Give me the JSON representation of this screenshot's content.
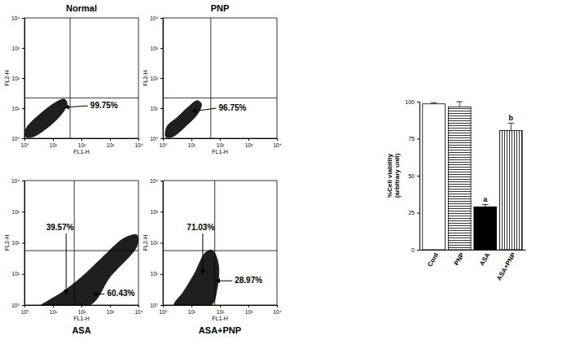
{
  "chart_data": [
    {
      "type": "density",
      "title": "Normal",
      "x_label": "FL1-H",
      "y_label": "FL2-H",
      "log": true,
      "xlim": [
        1,
        10000
      ],
      "ylim": [
        1,
        10000
      ],
      "xticks": [
        {
          "value": 1,
          "label": "10⁰"
        },
        {
          "value": 10,
          "label": "10¹"
        },
        {
          "value": 100,
          "label": "10²"
        },
        {
          "value": 1000,
          "label": "10³"
        },
        {
          "value": 10000,
          "label": "10⁴"
        }
      ],
      "yticks": [
        {
          "value": 1,
          "label": "10⁰"
        },
        {
          "value": 10,
          "label": "10¹"
        },
        {
          "value": 100,
          "label": "10²"
        },
        {
          "value": 1000,
          "label": "10³"
        },
        {
          "value": 10000,
          "label": "10⁴"
        }
      ],
      "gate_x": 40,
      "gate_y": 22,
      "color": "#000000",
      "x": [
        1.12,
        2.0,
        6.3,
        20,
        31.6,
        25,
        12.6,
        4.0,
        1.6,
        1.12
      ],
      "values": [
        1.12,
        1.12,
        2.2,
        6.3,
        14,
        20,
        15.8,
        7.1,
        3.2,
        2.0
      ],
      "annotations": [
        {
          "text": "99.75%",
          "x": 204,
          "y": 12,
          "arrow_x": 25.7,
          "arrow_y": 10.7
        }
      ]
    },
    {
      "type": "density",
      "title": "PNP",
      "x_label": "FL1-H",
      "y_label": "FL2-H",
      "log": true,
      "xlim": [
        1,
        10000
      ],
      "ylim": [
        1,
        10000
      ],
      "xticks": [
        {
          "value": 1,
          "label": "10⁰"
        },
        {
          "value": 10,
          "label": "10¹"
        },
        {
          "value": 100,
          "label": "10²"
        },
        {
          "value": 1000,
          "label": "10³"
        },
        {
          "value": 10000,
          "label": "10⁴"
        }
      ],
      "yticks": [
        {
          "value": 1,
          "label": "10⁰"
        },
        {
          "value": 10,
          "label": "10¹"
        },
        {
          "value": 100,
          "label": "10²"
        },
        {
          "value": 1000,
          "label": "10³"
        },
        {
          "value": 10000,
          "label": "10⁴"
        }
      ],
      "gate_x": 48,
      "gate_y": 22,
      "color": "#000000",
      "x": [
        1.26,
        2.2,
        6.3,
        17.8,
        22.4,
        15.8,
        7.9,
        3.2,
        1.4
      ],
      "values": [
        1.12,
        1.12,
        2.5,
        7.1,
        14.1,
        17.8,
        11.2,
        5.0,
        2.5
      ],
      "annotations": [
        {
          "text": "96.75%",
          "x": 91,
          "y": 10,
          "arrow_x": 10.7,
          "arrow_y": 7.8
        }
      ]
    },
    {
      "type": "density",
      "title": "ASA",
      "x_label": "FL1-H",
      "y_label": "FL2-H",
      "log": true,
      "xlim": [
        1,
        10000
      ],
      "ylim": [
        1,
        10000
      ],
      "xticks": [
        {
          "value": 1,
          "label": "10⁰"
        },
        {
          "value": 10,
          "label": "10¹"
        },
        {
          "value": 100,
          "label": "10²"
        },
        {
          "value": 1000,
          "label": "10³"
        },
        {
          "value": 10000,
          "label": "10⁴"
        }
      ],
      "yticks": [
        {
          "value": 1,
          "label": "10⁰"
        },
        {
          "value": 10,
          "label": "10¹"
        },
        {
          "value": 100,
          "label": "10²"
        },
        {
          "value": 1000,
          "label": "10³"
        },
        {
          "value": 10000,
          "label": "10⁴"
        }
      ],
      "gate_x": 56,
      "gate_y": 56,
      "color": "#000000",
      "x": [
        3.98,
        200,
        1000,
        8913,
        8913,
        3162,
        501,
        100,
        20,
        6.3
      ],
      "values": [
        1,
        1,
        7.9,
        79,
        178,
        141,
        31.6,
        7.9,
        2.5,
        1.32
      ],
      "annotations": [
        {
          "text": "39.57%",
          "x": 5.8,
          "y": 302,
          "arrow_x": 29,
          "arrow_y": 2.24
        },
        {
          "text": "60.43%",
          "x": 794,
          "y": 2.24,
          "arrow_x": 251,
          "arrow_y": 2.24
        }
      ]
    },
    {
      "type": "density",
      "title": "ASA+PNP",
      "x_label": "FL1-H",
      "y_label": "FL2-H",
      "log": true,
      "xlim": [
        1,
        10000
      ],
      "ylim": [
        1,
        10000
      ],
      "xticks": [
        {
          "value": 1,
          "label": "10⁰"
        },
        {
          "value": 10,
          "label": "10¹"
        },
        {
          "value": 100,
          "label": "10²"
        },
        {
          "value": 1000,
          "label": "10³"
        },
        {
          "value": 10000,
          "label": "10⁴"
        }
      ],
      "yticks": [
        {
          "value": 1,
          "label": "10⁰"
        },
        {
          "value": 10,
          "label": "10¹"
        },
        {
          "value": 100,
          "label": "10²"
        },
        {
          "value": 1000,
          "label": "10³"
        },
        {
          "value": 10000,
          "label": "10⁴"
        }
      ],
      "gate_x": 66,
      "gate_y": 56,
      "color": "#000000",
      "x": [
        2.5,
        50,
        79,
        89,
        56,
        32,
        12.6,
        5.0
      ],
      "values": [
        1,
        1,
        3.2,
        20,
        56,
        50,
        10,
        2.5
      ],
      "annotations": [
        {
          "text": "71.03%",
          "x": 6.9,
          "y": 302,
          "arrow_x": 25,
          "arrow_y": 10
        },
        {
          "text": "28.97%",
          "x": 331,
          "y": 6,
          "arrow_x": 71,
          "arrow_y": 6
        }
      ]
    },
    {
      "type": "bar",
      "y_label": [
        "%Cell viability",
        "(arbitrary unit)"
      ],
      "categories": [
        "Cont",
        "PNP",
        "ASA",
        "ASA+PNP"
      ],
      "values": [
        98.5,
        96.5,
        29,
        80.5
      ],
      "errors": [
        0.8,
        3.5,
        1.5,
        5
      ],
      "colors": [
        "#ffffff",
        "#ffffff",
        "#000000",
        "#ffffff"
      ],
      "significance": [
        null,
        null,
        "a",
        "b"
      ],
      "ylim": [
        0,
        100
      ],
      "yticks": [
        0,
        25,
        50,
        75,
        100
      ]
    }
  ]
}
